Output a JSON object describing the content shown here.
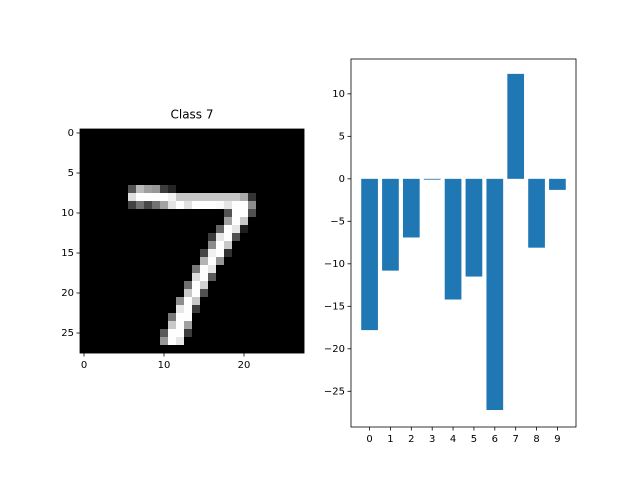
{
  "chart_data": [
    {
      "type": "image",
      "title": "Class 7",
      "cmap": "gray",
      "xlim": [
        -0.5,
        27.5
      ],
      "ylim": [
        27.5,
        -0.5
      ],
      "xticks": [
        0,
        10,
        20
      ],
      "yticks": [
        0,
        5,
        10,
        15,
        20,
        25
      ],
      "values": [
        [
          0,
          0,
          0,
          0,
          0,
          0,
          0,
          0,
          0,
          0,
          0,
          0,
          0,
          0,
          0,
          0,
          0,
          0,
          0,
          0,
          0,
          0,
          0,
          0,
          0,
          0,
          0,
          0
        ],
        [
          0,
          0,
          0,
          0,
          0,
          0,
          0,
          0,
          0,
          0,
          0,
          0,
          0,
          0,
          0,
          0,
          0,
          0,
          0,
          0,
          0,
          0,
          0,
          0,
          0,
          0,
          0,
          0
        ],
        [
          0,
          0,
          0,
          0,
          0,
          0,
          0,
          0,
          0,
          0,
          0,
          0,
          0,
          0,
          0,
          0,
          0,
          0,
          0,
          0,
          0,
          0,
          0,
          0,
          0,
          0,
          0,
          0
        ],
        [
          0,
          0,
          0,
          0,
          0,
          0,
          0,
          0,
          0,
          0,
          0,
          0,
          0,
          0,
          0,
          0,
          0,
          0,
          0,
          0,
          0,
          0,
          0,
          0,
          0,
          0,
          0,
          0
        ],
        [
          0,
          0,
          0,
          0,
          0,
          0,
          0,
          0,
          0,
          0,
          0,
          0,
          0,
          0,
          0,
          0,
          0,
          0,
          0,
          0,
          0,
          0,
          0,
          0,
          0,
          0,
          0,
          0
        ],
        [
          0,
          0,
          0,
          0,
          0,
          0,
          0,
          0,
          0,
          0,
          0,
          0,
          0,
          0,
          0,
          0,
          0,
          0,
          0,
          0,
          0,
          0,
          0,
          0,
          0,
          0,
          0,
          0
        ],
        [
          0,
          0,
          0,
          0,
          0,
          0,
          0,
          0,
          0,
          0,
          0,
          0,
          0,
          0,
          0,
          0,
          0,
          0,
          0,
          0,
          0,
          0,
          0,
          0,
          0,
          0,
          0,
          0
        ],
        [
          0,
          0,
          0,
          0,
          0,
          0,
          84,
          185,
          159,
          151,
          60,
          36,
          0,
          0,
          0,
          0,
          0,
          0,
          0,
          0,
          0,
          0,
          0,
          0,
          0,
          0,
          0,
          0
        ],
        [
          0,
          0,
          0,
          0,
          0,
          0,
          222,
          254,
          254,
          254,
          254,
          241,
          198,
          198,
          198,
          198,
          198,
          198,
          198,
          198,
          170,
          52,
          0,
          0,
          0,
          0,
          0,
          0
        ],
        [
          0,
          0,
          0,
          0,
          0,
          0,
          67,
          114,
          72,
          114,
          163,
          227,
          254,
          225,
          254,
          254,
          254,
          250,
          229,
          254,
          254,
          140,
          0,
          0,
          0,
          0,
          0,
          0
        ],
        [
          0,
          0,
          0,
          0,
          0,
          0,
          0,
          0,
          0,
          0,
          0,
          0,
          0,
          0,
          0,
          0,
          0,
          0,
          83,
          254,
          254,
          80,
          0,
          0,
          0,
          0,
          0,
          0
        ],
        [
          0,
          0,
          0,
          0,
          0,
          0,
          0,
          0,
          0,
          0,
          0,
          0,
          0,
          0,
          0,
          0,
          0,
          0,
          160,
          254,
          200,
          0,
          0,
          0,
          0,
          0,
          0,
          0
        ],
        [
          0,
          0,
          0,
          0,
          0,
          0,
          0,
          0,
          0,
          0,
          0,
          0,
          0,
          0,
          0,
          0,
          0,
          100,
          254,
          230,
          30,
          0,
          0,
          0,
          0,
          0,
          0,
          0
        ],
        [
          0,
          0,
          0,
          0,
          0,
          0,
          0,
          0,
          0,
          0,
          0,
          0,
          0,
          0,
          0,
          0,
          60,
          230,
          254,
          80,
          0,
          0,
          0,
          0,
          0,
          0,
          0,
          0
        ],
        [
          0,
          0,
          0,
          0,
          0,
          0,
          0,
          0,
          0,
          0,
          0,
          0,
          0,
          0,
          0,
          0,
          140,
          254,
          200,
          0,
          0,
          0,
          0,
          0,
          0,
          0,
          0,
          0
        ],
        [
          0,
          0,
          0,
          0,
          0,
          0,
          0,
          0,
          0,
          0,
          0,
          0,
          0,
          0,
          0,
          70,
          240,
          254,
          50,
          0,
          0,
          0,
          0,
          0,
          0,
          0,
          0,
          0
        ],
        [
          0,
          0,
          0,
          0,
          0,
          0,
          0,
          0,
          0,
          0,
          0,
          0,
          0,
          0,
          0,
          180,
          254,
          150,
          0,
          0,
          0,
          0,
          0,
          0,
          0,
          0,
          0,
          0
        ],
        [
          0,
          0,
          0,
          0,
          0,
          0,
          0,
          0,
          0,
          0,
          0,
          0,
          0,
          0,
          120,
          254,
          230,
          0,
          0,
          0,
          0,
          0,
          0,
          0,
          0,
          0,
          0,
          0
        ],
        [
          0,
          0,
          0,
          0,
          0,
          0,
          0,
          0,
          0,
          0,
          0,
          0,
          0,
          0,
          220,
          254,
          90,
          0,
          0,
          0,
          0,
          0,
          0,
          0,
          0,
          0,
          0,
          0
        ],
        [
          0,
          0,
          0,
          0,
          0,
          0,
          0,
          0,
          0,
          0,
          0,
          0,
          0,
          110,
          254,
          210,
          0,
          0,
          0,
          0,
          0,
          0,
          0,
          0,
          0,
          0,
          0,
          0
        ],
        [
          0,
          0,
          0,
          0,
          0,
          0,
          0,
          0,
          0,
          0,
          0,
          0,
          0,
          200,
          254,
          80,
          0,
          0,
          0,
          0,
          0,
          0,
          0,
          0,
          0,
          0,
          0,
          0
        ],
        [
          0,
          0,
          0,
          0,
          0,
          0,
          0,
          0,
          0,
          0,
          0,
          0,
          140,
          254,
          200,
          0,
          0,
          0,
          0,
          0,
          0,
          0,
          0,
          0,
          0,
          0,
          0,
          0
        ],
        [
          0,
          0,
          0,
          0,
          0,
          0,
          0,
          0,
          0,
          0,
          0,
          0,
          230,
          254,
          60,
          0,
          0,
          0,
          0,
          0,
          0,
          0,
          0,
          0,
          0,
          0,
          0,
          0
        ],
        [
          0,
          0,
          0,
          0,
          0,
          0,
          0,
          0,
          0,
          0,
          0,
          120,
          254,
          254,
          0,
          0,
          0,
          0,
          0,
          0,
          0,
          0,
          0,
          0,
          0,
          0,
          0,
          0
        ],
        [
          0,
          0,
          0,
          0,
          0,
          0,
          0,
          0,
          0,
          0,
          0,
          200,
          254,
          160,
          0,
          0,
          0,
          0,
          0,
          0,
          0,
          0,
          0,
          0,
          0,
          0,
          0,
          0
        ],
        [
          0,
          0,
          0,
          0,
          0,
          0,
          0,
          0,
          0,
          0,
          90,
          254,
          254,
          60,
          0,
          0,
          0,
          0,
          0,
          0,
          0,
          0,
          0,
          0,
          0,
          0,
          0,
          0
        ],
        [
          0,
          0,
          0,
          0,
          0,
          0,
          0,
          0,
          0,
          0,
          150,
          254,
          230,
          0,
          0,
          0,
          0,
          0,
          0,
          0,
          0,
          0,
          0,
          0,
          0,
          0,
          0,
          0
        ],
        [
          0,
          0,
          0,
          0,
          0,
          0,
          0,
          0,
          0,
          0,
          0,
          0,
          0,
          0,
          0,
          0,
          0,
          0,
          0,
          0,
          0,
          0,
          0,
          0,
          0,
          0,
          0,
          0
        ]
      ]
    },
    {
      "type": "bar",
      "color": "#1f77b4",
      "x": [
        0,
        1,
        2,
        3,
        4,
        5,
        6,
        7,
        8,
        9
      ],
      "values": [
        -17.8,
        -10.8,
        -6.9,
        -0.1,
        -14.2,
        -11.5,
        -27.2,
        12.35,
        -8.1,
        -1.3
      ],
      "xlim": [
        -0.89,
        9.89
      ],
      "ylim": [
        -29.2,
        14.1
      ],
      "xticks": [
        0,
        1,
        2,
        3,
        4,
        5,
        6,
        7,
        8,
        9
      ],
      "yticks": [
        {
          "value": -25,
          "label": "−25"
        },
        {
          "value": -20,
          "label": "−20"
        },
        {
          "value": -15,
          "label": "−15"
        },
        {
          "value": -10,
          "label": "−10"
        },
        {
          "value": -5,
          "label": "−5"
        },
        0,
        5,
        10
      ]
    }
  ]
}
